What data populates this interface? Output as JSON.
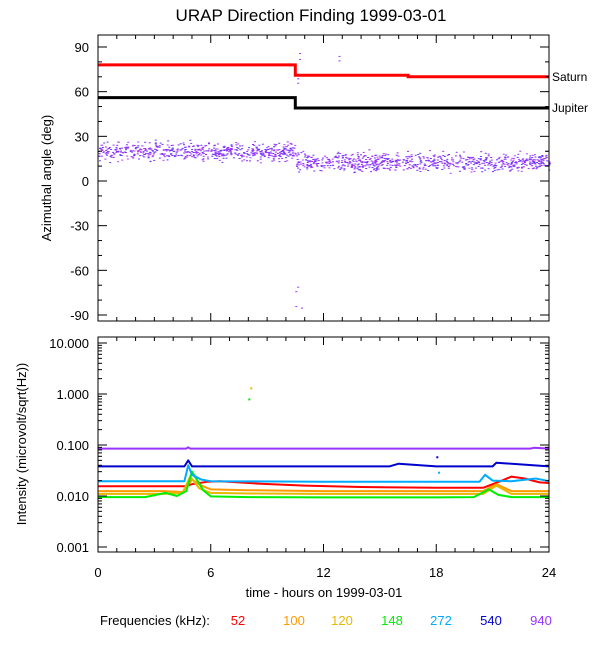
{
  "chart_data": [
    {
      "type": "scatter",
      "panel": "azimuth",
      "title": "URAP Direction Finding  1999-03-01",
      "ylabel": "Azimuthal angle (deg)",
      "xlim": [
        0,
        24
      ],
      "ylim": [
        -90,
        90
      ],
      "yticks": [
        "90",
        "60",
        "30",
        "0",
        "-30",
        "-60",
        "-90"
      ],
      "lines": [
        {
          "name": "Saturn",
          "color": "#ff0000",
          "x": [
            0,
            10.5,
            10.5,
            16.5,
            16.5,
            24
          ],
          "y": [
            78,
            78,
            71,
            71,
            70,
            70
          ]
        },
        {
          "name": "Jupiter",
          "color": "#000000",
          "x": [
            0,
            10.5,
            10.5,
            24
          ],
          "y": [
            56,
            56,
            49,
            49
          ]
        }
      ],
      "scatter": {
        "color": "#9b30ff",
        "segments": [
          {
            "x": [
              0,
              10.5
            ],
            "y_mean": 20,
            "y_spread": 8
          },
          {
            "x": [
              10.5,
              24
            ],
            "y_mean": 13,
            "y_spread": 8
          }
        ],
        "outliers": [
          {
            "x": 10.7,
            "y": 86
          },
          {
            "x": 10.7,
            "y": 82
          },
          {
            "x": 12.8,
            "y": 84
          },
          {
            "x": 12.8,
            "y": 81
          },
          {
            "x": 10.6,
            "y": 69
          },
          {
            "x": 10.6,
            "y": 66
          },
          {
            "x": 10.6,
            "y": -71
          },
          {
            "x": 10.5,
            "y": -74
          },
          {
            "x": 10.5,
            "y": -84
          },
          {
            "x": 10.8,
            "y": -85
          }
        ]
      }
    },
    {
      "type": "line",
      "panel": "intensity",
      "xlabel": "time - hours on 1999-03-01",
      "ylabel": "Intensity (microvolt/sqrt(Hz))",
      "xlim": [
        0,
        24
      ],
      "ylim": [
        0.001,
        10
      ],
      "yscale": "log",
      "xticks": [
        "0",
        "6",
        "12",
        "18",
        "24"
      ],
      "yticks": [
        "10.000",
        "1.000",
        "0.100",
        "0.010",
        "0.001"
      ],
      "legend_title": "Frequencies (kHz):",
      "series": [
        {
          "name": "52",
          "color": "#ff0000",
          "x": [
            0,
            2.3,
            4.6,
            5.0,
            5.8,
            6.5,
            8.5,
            11,
            14,
            18,
            20.5,
            21.5,
            22,
            22.7,
            23.5,
            24
          ],
          "y": [
            0.0155,
            0.0155,
            0.0155,
            0.017,
            0.019,
            0.0195,
            0.0175,
            0.016,
            0.015,
            0.0145,
            0.0145,
            0.02,
            0.024,
            0.022,
            0.0185,
            0.018
          ]
        },
        {
          "name": "100",
          "color": "#ff9900",
          "x": [
            0,
            3.5,
            4.5,
            5.0,
            5.5,
            6.0,
            8,
            12,
            18,
            20.5,
            21.2,
            22,
            22.7,
            24
          ],
          "y": [
            0.0125,
            0.0125,
            0.012,
            0.021,
            0.016,
            0.0135,
            0.013,
            0.0125,
            0.0125,
            0.0125,
            0.017,
            0.0125,
            0.0125,
            0.0125
          ]
        },
        {
          "name": "120",
          "color": "#e6b800",
          "x": [
            0,
            3.5,
            4.5,
            4.9,
            5.4,
            6.0,
            8,
            12,
            18,
            20.5,
            21.2,
            22,
            24
          ],
          "y": [
            0.011,
            0.011,
            0.0115,
            0.024,
            0.014,
            0.0115,
            0.0112,
            0.011,
            0.011,
            0.011,
            0.016,
            0.011,
            0.011
          ]
        },
        {
          "name": "148",
          "color": "#00ee00",
          "x": [
            0,
            2.5,
            3.6,
            4.2,
            4.7,
            5.0,
            5.6,
            6.0,
            8,
            12,
            18,
            20,
            20.8,
            21.3,
            22,
            24
          ],
          "y": [
            0.0095,
            0.0095,
            0.0115,
            0.01,
            0.0125,
            0.03,
            0.013,
            0.0098,
            0.0095,
            0.0094,
            0.0094,
            0.0095,
            0.0135,
            0.0105,
            0.0095,
            0.0095
          ]
        },
        {
          "name": "272",
          "color": "#00aaff",
          "x": [
            0,
            4.6,
            4.8,
            5.0,
            5.5,
            6,
            12,
            18,
            20.3,
            20.6,
            21,
            22,
            23.3,
            24
          ],
          "y": [
            0.0195,
            0.0195,
            0.04,
            0.026,
            0.021,
            0.0195,
            0.019,
            0.019,
            0.019,
            0.026,
            0.02,
            0.0195,
            0.022,
            0.0195
          ]
        },
        {
          "name": "540",
          "color": "#0000cc",
          "x": [
            0,
            4.6,
            4.8,
            5.0,
            6,
            12,
            15.5,
            16,
            18,
            21,
            21.2,
            24
          ],
          "y": [
            0.038,
            0.038,
            0.05,
            0.038,
            0.038,
            0.038,
            0.038,
            0.043,
            0.038,
            0.038,
            0.045,
            0.038
          ]
        },
        {
          "name": "940",
          "color": "#9933ff",
          "x": [
            0,
            4.7,
            4.8,
            4.9,
            12,
            18,
            23,
            23.2,
            24
          ],
          "y": [
            0.085,
            0.085,
            0.09,
            0.085,
            0.085,
            0.085,
            0.085,
            0.088,
            0.085
          ]
        }
      ],
      "isolated_points": [
        {
          "x": 8.1,
          "y": 1.35,
          "color": "#e6b800"
        },
        {
          "x": 8.0,
          "y": 0.82,
          "color": "#00ee00"
        },
        {
          "x": 18.0,
          "y": 0.06,
          "color": "#0000cc"
        },
        {
          "x": 18.1,
          "y": 0.03,
          "color": "#00aaff"
        }
      ]
    }
  ]
}
